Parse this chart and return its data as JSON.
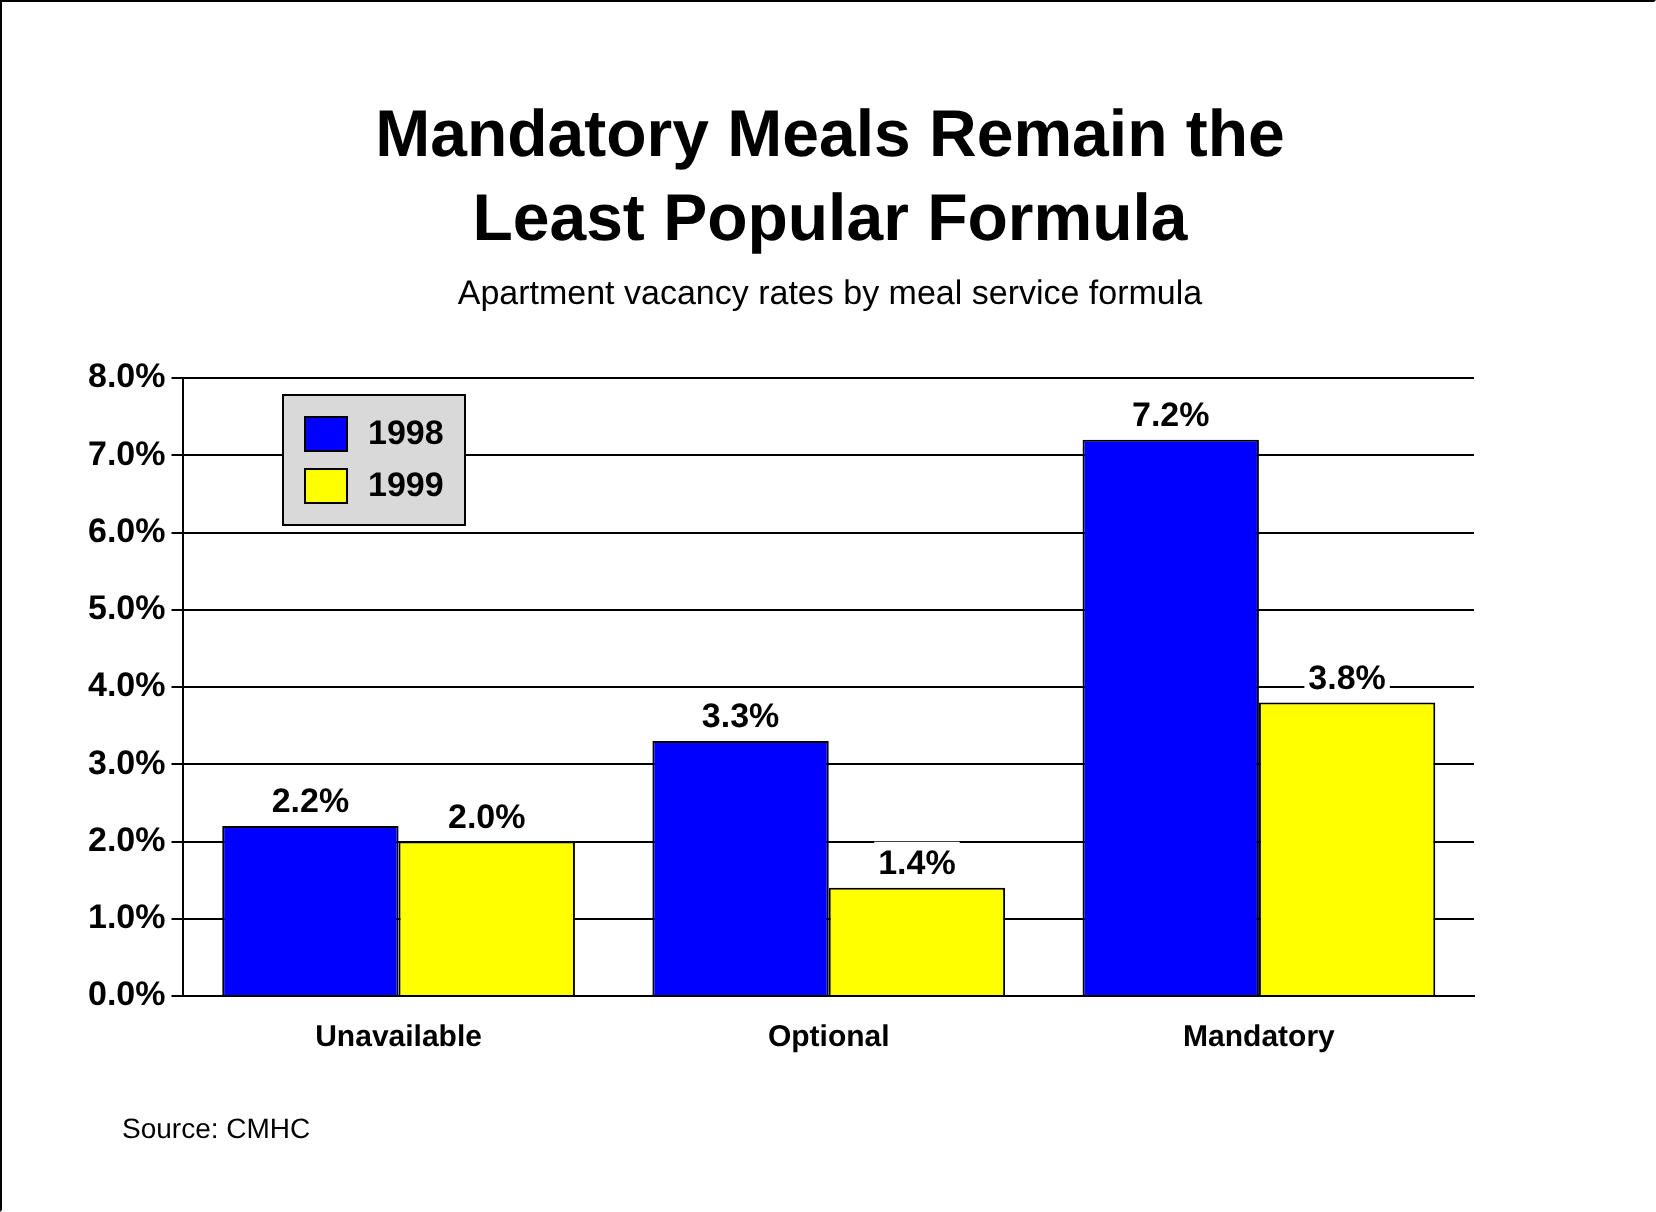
{
  "chart_data": {
    "type": "bar",
    "title": "Mandatory Meals Remain the Least Popular Formula",
    "subtitle": "Apartment vacancy rates by meal service formula",
    "annotations": [
      "Source: CMHC"
    ],
    "categories": [
      "Unavailable",
      "Optional",
      "Mandatory"
    ],
    "series": [
      {
        "name": "1998",
        "color": "#0000ff",
        "values": [
          2.2,
          3.3,
          7.2
        ],
        "value_labels": [
          "2.2%",
          "3.3%",
          "7.2%"
        ]
      },
      {
        "name": "1999",
        "color": "#ffff00",
        "values": [
          2.0,
          1.4,
          3.8
        ],
        "value_labels": [
          "2.0%",
          "1.4%",
          "3.8%"
        ]
      }
    ],
    "ylim": [
      0,
      8
    ],
    "yticks": [
      {
        "value": 0,
        "label": "0.0%"
      },
      {
        "value": 1,
        "label": "1.0%"
      },
      {
        "value": 2,
        "label": "2.0%"
      },
      {
        "value": 3,
        "label": "3.0%"
      },
      {
        "value": 4,
        "label": "4.0%"
      },
      {
        "value": 5,
        "label": "5.0%"
      },
      {
        "value": 6,
        "label": "6.0%"
      },
      {
        "value": 7,
        "label": "7.0%"
      },
      {
        "value": 8,
        "label": "8.0%"
      }
    ],
    "grid": "y",
    "legend": "top left"
  }
}
